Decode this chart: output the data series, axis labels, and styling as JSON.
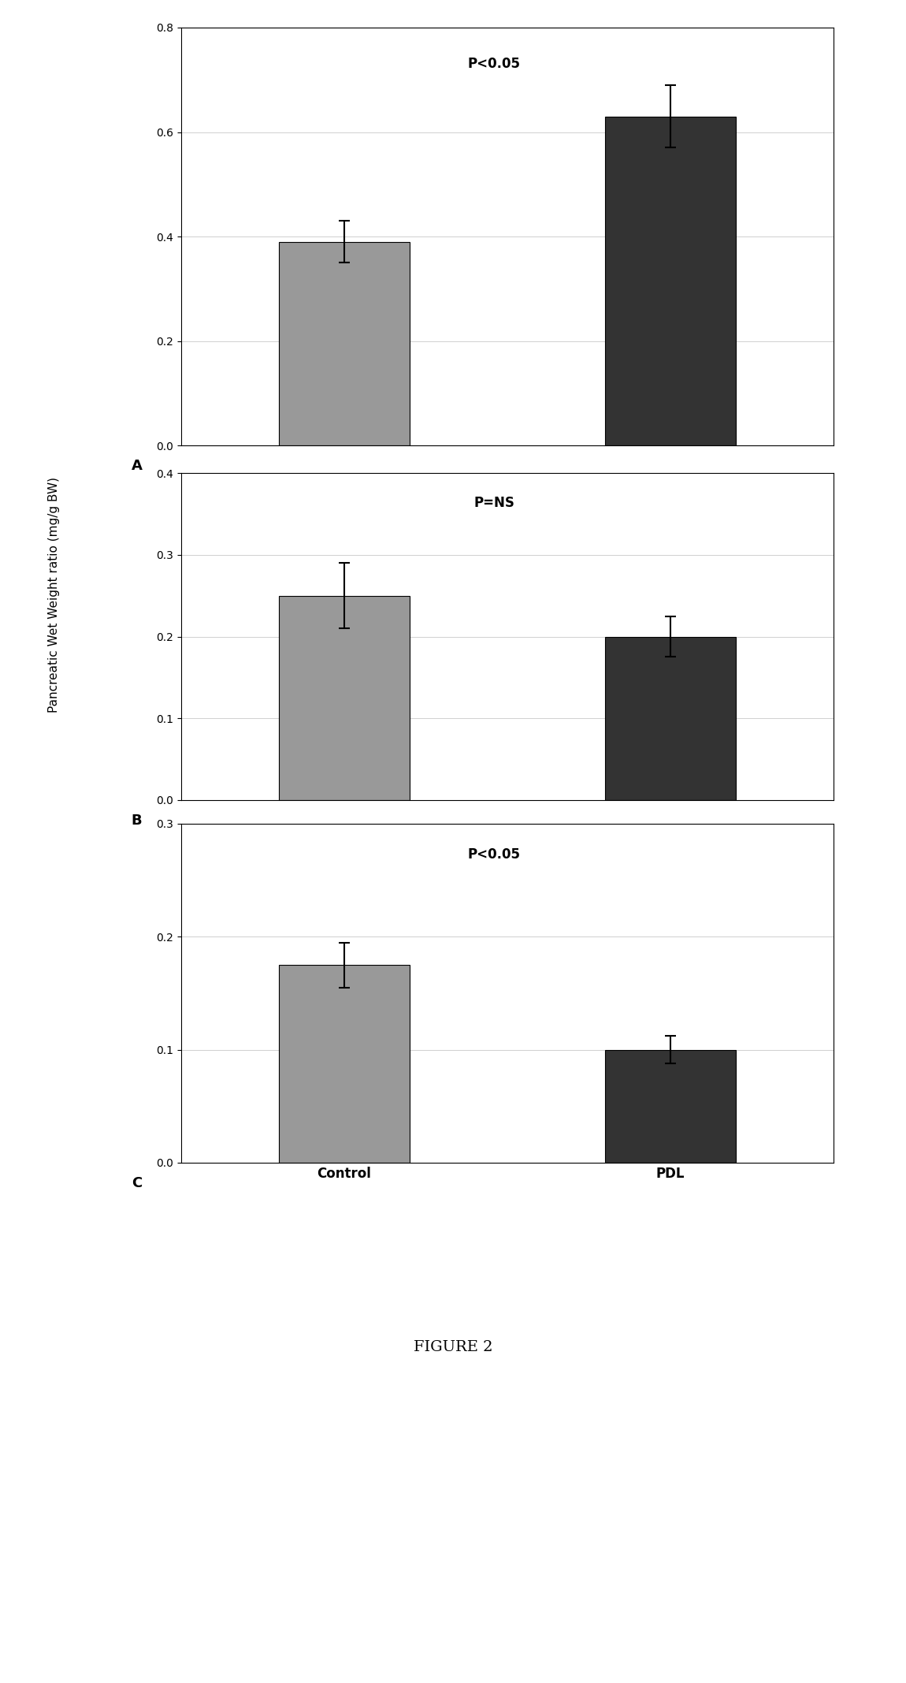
{
  "panels": [
    {
      "label": "A",
      "values": [
        0.39,
        0.63
      ],
      "errors": [
        0.04,
        0.06
      ],
      "ylim": [
        0,
        0.8
      ],
      "yticks": [
        0,
        0.2,
        0.4,
        0.6,
        0.8
      ],
      "annotation": "P<0.05"
    },
    {
      "label": "B",
      "values": [
        0.25,
        0.2
      ],
      "errors": [
        0.04,
        0.025
      ],
      "ylim": [
        0,
        0.4
      ],
      "yticks": [
        0,
        0.1,
        0.2,
        0.3,
        0.4
      ],
      "annotation": "P=NS"
    },
    {
      "label": "C",
      "values": [
        0.175,
        0.1
      ],
      "errors": [
        0.02,
        0.012
      ],
      "ylim": [
        0,
        0.3
      ],
      "yticks": [
        0,
        0.1,
        0.2,
        0.3
      ],
      "annotation": "P<0.05"
    }
  ],
  "categories": [
    "Control",
    "PDL"
  ],
  "bar_colors": [
    "#999999",
    "#333333"
  ],
  "ylabel": "Pancreatic Wet Weight ratio (mg/g BW)",
  "figure_caption": "FIGURE 2",
  "bg_color": "#ffffff",
  "grid_color": "#bbbbbb",
  "bar_width": 0.4,
  "annotation_fontsize": 12,
  "tick_fontsize": 10,
  "label_fontsize": 11,
  "caption_fontsize": 14,
  "panel_label_fontsize": 13
}
